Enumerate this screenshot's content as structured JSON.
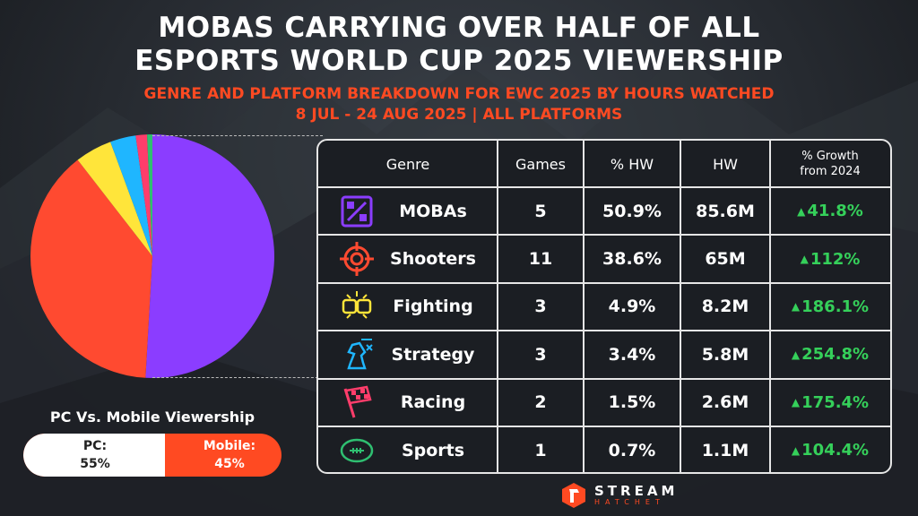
{
  "title": {
    "line1": "MOBAS CARRYING OVER HALF OF ALL",
    "line2": "ESPORTS WORLD CUP 2025 VIEWERSHIP"
  },
  "subtitle": {
    "line1": "GENRE AND PLATFORM BREAKDOWN FOR EWC 2025 BY HOURS WATCHED",
    "line2": "8 JUL - 24 AUG 2025 | ALL PLATFORMS"
  },
  "colors": {
    "accent": "#ff4a22",
    "growth": "#35d05a",
    "mobas": "#8b3dff",
    "shooters": "#ff4a30",
    "fighting": "#ffe53a",
    "strategy": "#1fb6ff",
    "racing": "#ff3d6b",
    "sports": "#2fbf71"
  },
  "table": {
    "headers": {
      "genre": "Genre",
      "games": "Games",
      "pct_hw": "% HW",
      "hw": "HW",
      "growth_line1": "% Growth",
      "growth_line2": "from 2024"
    },
    "rows": [
      {
        "genre": "MOBAs",
        "icon": "board-icon",
        "games": "5",
        "pct_hw": "50.9%",
        "hw": "85.6M",
        "growth": "41.8%"
      },
      {
        "genre": "Shooters",
        "icon": "crosshair-icon",
        "games": "11",
        "pct_hw": "38.6%",
        "hw": "65M",
        "growth": "112%"
      },
      {
        "genre": "Fighting",
        "icon": "fists-icon",
        "games": "3",
        "pct_hw": "4.9%",
        "hw": "8.2M",
        "growth": "186.1%"
      },
      {
        "genre": "Strategy",
        "icon": "chess-knight-icon",
        "games": "3",
        "pct_hw": "3.4%",
        "hw": "5.8M",
        "growth": "254.8%"
      },
      {
        "genre": "Racing",
        "icon": "checkered-flag-icon",
        "games": "2",
        "pct_hw": "1.5%",
        "hw": "2.6M",
        "growth": "175.4%"
      },
      {
        "genre": "Sports",
        "icon": "football-icon",
        "games": "1",
        "pct_hw": "0.7%",
        "hw": "1.1M",
        "growth": "104.4%"
      }
    ]
  },
  "chart_data": {
    "type": "pie",
    "categories": [
      "MOBAs",
      "Shooters",
      "Fighting",
      "Strategy",
      "Racing",
      "Sports"
    ],
    "values": [
      50.9,
      38.6,
      4.9,
      3.4,
      1.5,
      0.7
    ],
    "colors": [
      "#8b3dff",
      "#ff4a30",
      "#ffe53a",
      "#1fb6ff",
      "#ff3d6b",
      "#2fbf71"
    ]
  },
  "platform": {
    "title": "PC Vs. Mobile Viewership",
    "pc_label": "PC:",
    "pc_value": "55%",
    "pc_fraction": 0.55,
    "mobile_label": "Mobile:",
    "mobile_value": "45%"
  },
  "brand": {
    "name": "STREAM",
    "sub": "HATCHET"
  }
}
